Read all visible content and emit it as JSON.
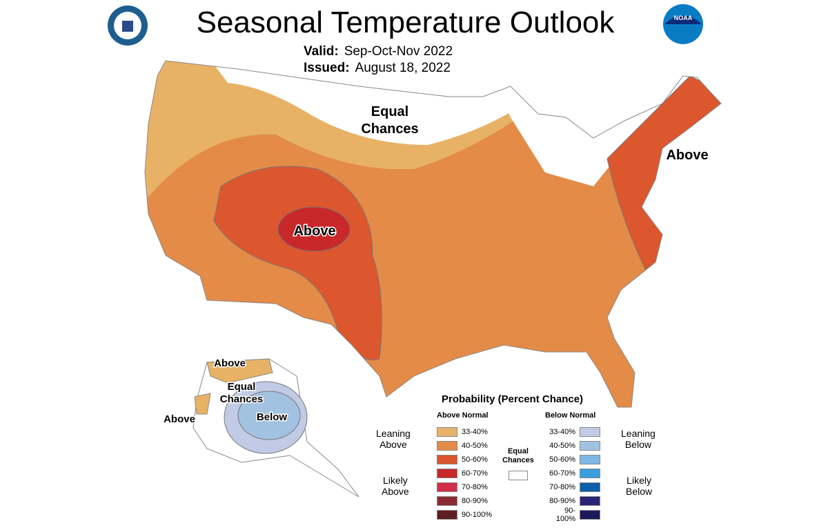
{
  "title": "Seasonal Temperature Outlook",
  "valid_label": "Valid:",
  "valid_value": "Sep-Oct-Nov 2022",
  "issued_label": "Issued:",
  "issued_value": "August 18, 2022",
  "logos": {
    "left": "Department of Commerce seal",
    "right": "NOAA"
  },
  "map_labels": {
    "equal_chances_conus": [
      "Equal",
      "Chances"
    ],
    "above_central": "Above",
    "above_northeast": "Above",
    "alaska_above_north": "Above",
    "alaska_equal_chances": [
      "Equal",
      "Chances"
    ],
    "alaska_below": "Below",
    "alaska_above_west": "Above"
  },
  "legend": {
    "title": "Probability (Percent Chance)",
    "above_header": "Above Normal",
    "below_header": "Below Normal",
    "above": [
      {
        "range": "33-40%",
        "color": "#e8b266"
      },
      {
        "range": "40-50%",
        "color": "#e48b48"
      },
      {
        "range": "50-60%",
        "color": "#dc562e"
      },
      {
        "range": "60-70%",
        "color": "#c8282a"
      },
      {
        "range": "70-80%",
        "color": "#d22e48"
      },
      {
        "range": "80-90%",
        "color": "#8a2b35"
      },
      {
        "range": "90-100%",
        "color": "#5e1f22"
      }
    ],
    "below": [
      {
        "range": "33-40%",
        "color": "#c1cbe6"
      },
      {
        "range": "40-50%",
        "color": "#a2c2e2"
      },
      {
        "range": "50-60%",
        "color": "#7eb7e4"
      },
      {
        "range": "60-70%",
        "color": "#3a9fde"
      },
      {
        "range": "70-80%",
        "color": "#0a5fa8"
      },
      {
        "range": "80-90%",
        "color": "#2a2378"
      },
      {
        "range": "90-100%",
        "color": "#1e1a5a"
      }
    ],
    "leaning_above": [
      "Leaning",
      "Above"
    ],
    "likely_above": [
      "Likely",
      "Above"
    ],
    "leaning_below": [
      "Leaning",
      "Below"
    ],
    "likely_below": [
      "Likely",
      "Below"
    ],
    "equal_chances": [
      "Equal",
      "Chances"
    ],
    "equal_color": "#ffffff"
  }
}
